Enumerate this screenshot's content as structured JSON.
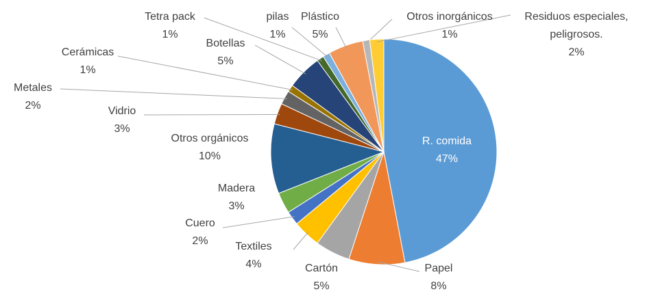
{
  "chart_data": {
    "type": "pie",
    "categories": [
      "R. comida",
      "Papel",
      "Cartón",
      "Textiles",
      "Cuero",
      "Madera",
      "Otros orgánicos",
      "Vidrio",
      "Metales",
      "Cerámicas",
      "Botellas",
      "Tetra pack",
      "pilas",
      "Plástico",
      "Otros inorgánicos",
      "Residuos especiales, peligrosos."
    ],
    "values": [
      47,
      8,
      5,
      4,
      2,
      3,
      10,
      3,
      2,
      1,
      5,
      1,
      1,
      5,
      1,
      2
    ],
    "value_labels": [
      "47%",
      "8%",
      "5%",
      "4%",
      "2%",
      "3%",
      "10%",
      "3%",
      "2%",
      "1%",
      "5%",
      "1%",
      "1%",
      "5%",
      "1%",
      "2%"
    ],
    "colors": [
      "#5b9bd5",
      "#ed7d31",
      "#a5a5a5",
      "#ffc000",
      "#4472c4",
      "#70ad47",
      "#255e91",
      "#9e480e",
      "#636363",
      "#997300",
      "#264478",
      "#43682b",
      "#7cafdd",
      "#f1975a",
      "#b7b7b7",
      "#ffcd33"
    ]
  }
}
